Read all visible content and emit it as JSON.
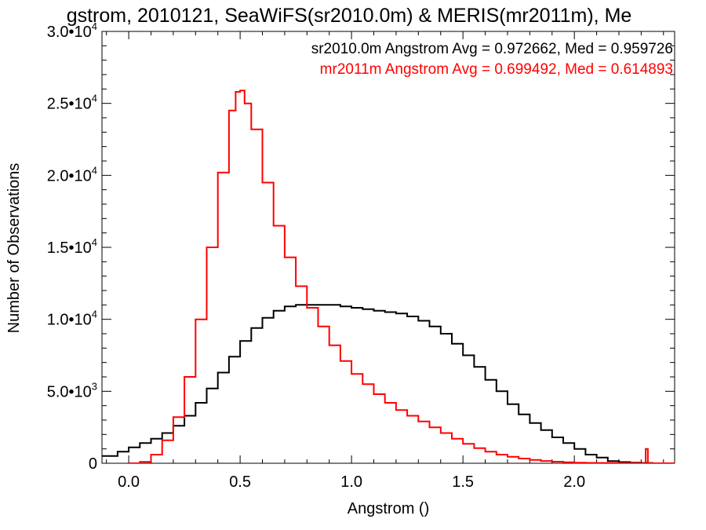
{
  "chart_data": {
    "type": "line",
    "title": "gstrom, 2010121, SeaWiFS(sr2010.0m) & MERIS(mr2011m), Me",
    "xlabel": "Angstrom ()",
    "ylabel": "Number of Observations",
    "xlim": [
      -0.12,
      2.45
    ],
    "ylim": [
      0,
      30000
    ],
    "xticks": [
      {
        "value": 0.0,
        "label": "0.0"
      },
      {
        "value": 0.5,
        "label": "0.5"
      },
      {
        "value": 1.0,
        "label": "1.0"
      },
      {
        "value": 1.5,
        "label": "1.5"
      },
      {
        "value": 2.0,
        "label": "2.0"
      }
    ],
    "yticks": [
      {
        "value": 0,
        "mantissa": "0",
        "exp": ""
      },
      {
        "value": 5000,
        "mantissa": "5.0•10",
        "exp": "3"
      },
      {
        "value": 10000,
        "mantissa": "1.0•10",
        "exp": "4"
      },
      {
        "value": 15000,
        "mantissa": "1.5•10",
        "exp": "4"
      },
      {
        "value": 20000,
        "mantissa": "2.0•10",
        "exp": "4"
      },
      {
        "value": 25000,
        "mantissa": "2.5•10",
        "exp": "4"
      },
      {
        "value": 30000,
        "mantissa": "3.0•10",
        "exp": "4"
      }
    ],
    "legend_placement": "top-right",
    "series": [
      {
        "label": "sr2010.0m Angstrom Avg = 0.972662, Med = 0.959726",
        "color": "#000000",
        "x": [
          -0.12,
          -0.05,
          0.0,
          0.05,
          0.1,
          0.15,
          0.2,
          0.25,
          0.3,
          0.35,
          0.4,
          0.45,
          0.5,
          0.55,
          0.6,
          0.65,
          0.7,
          0.75,
          0.8,
          0.85,
          0.9,
          0.95,
          1.0,
          1.05,
          1.1,
          1.15,
          1.2,
          1.25,
          1.3,
          1.35,
          1.4,
          1.45,
          1.5,
          1.55,
          1.6,
          1.65,
          1.7,
          1.75,
          1.8,
          1.85,
          1.9,
          1.95,
          2.0,
          2.05,
          2.1,
          2.15,
          2.2,
          2.25,
          2.3,
          2.35
        ],
        "y": [
          500,
          800,
          1100,
          1400,
          1700,
          2100,
          2600,
          3300,
          4200,
          5200,
          6300,
          7400,
          8500,
          9400,
          10100,
          10600,
          10900,
          11000,
          11000,
          11000,
          11000,
          10900,
          10800,
          10700,
          10600,
          10500,
          10400,
          10200,
          9900,
          9500,
          9000,
          8300,
          7500,
          6700,
          5800,
          5000,
          4100,
          3400,
          2800,
          2300,
          1800,
          1400,
          1000,
          600,
          400,
          150,
          80,
          40,
          20,
          0
        ]
      },
      {
        "label": "mr2011m Angstrom Avg = 0.699492, Med = 0.614893",
        "color": "#ff0000",
        "x": [
          0.0,
          0.05,
          0.1,
          0.15,
          0.2,
          0.25,
          0.3,
          0.35,
          0.4,
          0.45,
          0.48,
          0.5,
          0.52,
          0.55,
          0.6,
          0.65,
          0.7,
          0.75,
          0.8,
          0.85,
          0.9,
          0.95,
          1.0,
          1.05,
          1.1,
          1.15,
          1.2,
          1.25,
          1.3,
          1.35,
          1.4,
          1.45,
          1.5,
          1.55,
          1.6,
          1.65,
          1.7,
          1.75,
          1.8,
          1.85,
          1.9,
          1.95,
          2.0,
          2.05,
          2.1,
          2.15,
          2.2,
          2.25,
          2.3,
          2.32,
          2.33,
          2.35,
          2.4,
          2.45
        ],
        "y": [
          0,
          100,
          600,
          1600,
          3200,
          6000,
          10000,
          15000,
          20200,
          24500,
          25800,
          25900,
          25000,
          23200,
          19500,
          16500,
          14300,
          12300,
          10800,
          9500,
          8200,
          7100,
          6200,
          5500,
          4800,
          4200,
          3700,
          3300,
          2900,
          2500,
          2100,
          1700,
          1350,
          1050,
          800,
          600,
          450,
          330,
          230,
          160,
          110,
          70,
          45,
          30,
          20,
          10,
          5,
          3,
          2,
          1000,
          2,
          0,
          0,
          0
        ]
      }
    ]
  }
}
